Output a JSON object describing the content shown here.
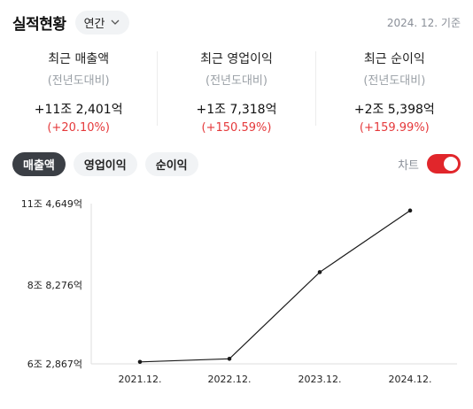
{
  "header": {
    "title": "실적현황",
    "period": "연간",
    "date_ref": "2024. 12. 기준"
  },
  "summary": [
    {
      "label": "최근 매출액",
      "sub": "(전년도대비)",
      "value": "+11조 2,401억",
      "change": "(+20.10%)"
    },
    {
      "label": "최근 영업이익",
      "sub": "(전년도대비)",
      "value": "+1조 7,318억",
      "change": "(+150.59%)"
    },
    {
      "label": "최근 순이익",
      "sub": "(전년도대비)",
      "value": "+2조 5,398억",
      "change": "(+159.99%)"
    }
  ],
  "tabs": [
    {
      "label": "매출액",
      "active": true
    },
    {
      "label": "영업이익",
      "active": false
    },
    {
      "label": "순이익",
      "active": false
    }
  ],
  "chart_toggle": {
    "label": "차트",
    "on": true
  },
  "colors": {
    "accent_red": "#e1262b",
    "change_red": "#e5393b",
    "active_tab": "#3b3f45"
  },
  "chart_data": {
    "type": "line",
    "categories": [
      "2021.12.",
      "2022.12.",
      "2023.12.",
      "2024.12."
    ],
    "values": [
      6.35,
      6.45,
      9.25,
      11.24
    ],
    "unit_note": "조원",
    "ytick_values": [
      6.2867,
      8.8276,
      11.4649
    ],
    "ytick_labels": [
      "6조 2,867억",
      "8조 8,276억",
      "11조 4,649억"
    ],
    "ylim": [
      6.2867,
      11.4649
    ],
    "grid": false
  }
}
